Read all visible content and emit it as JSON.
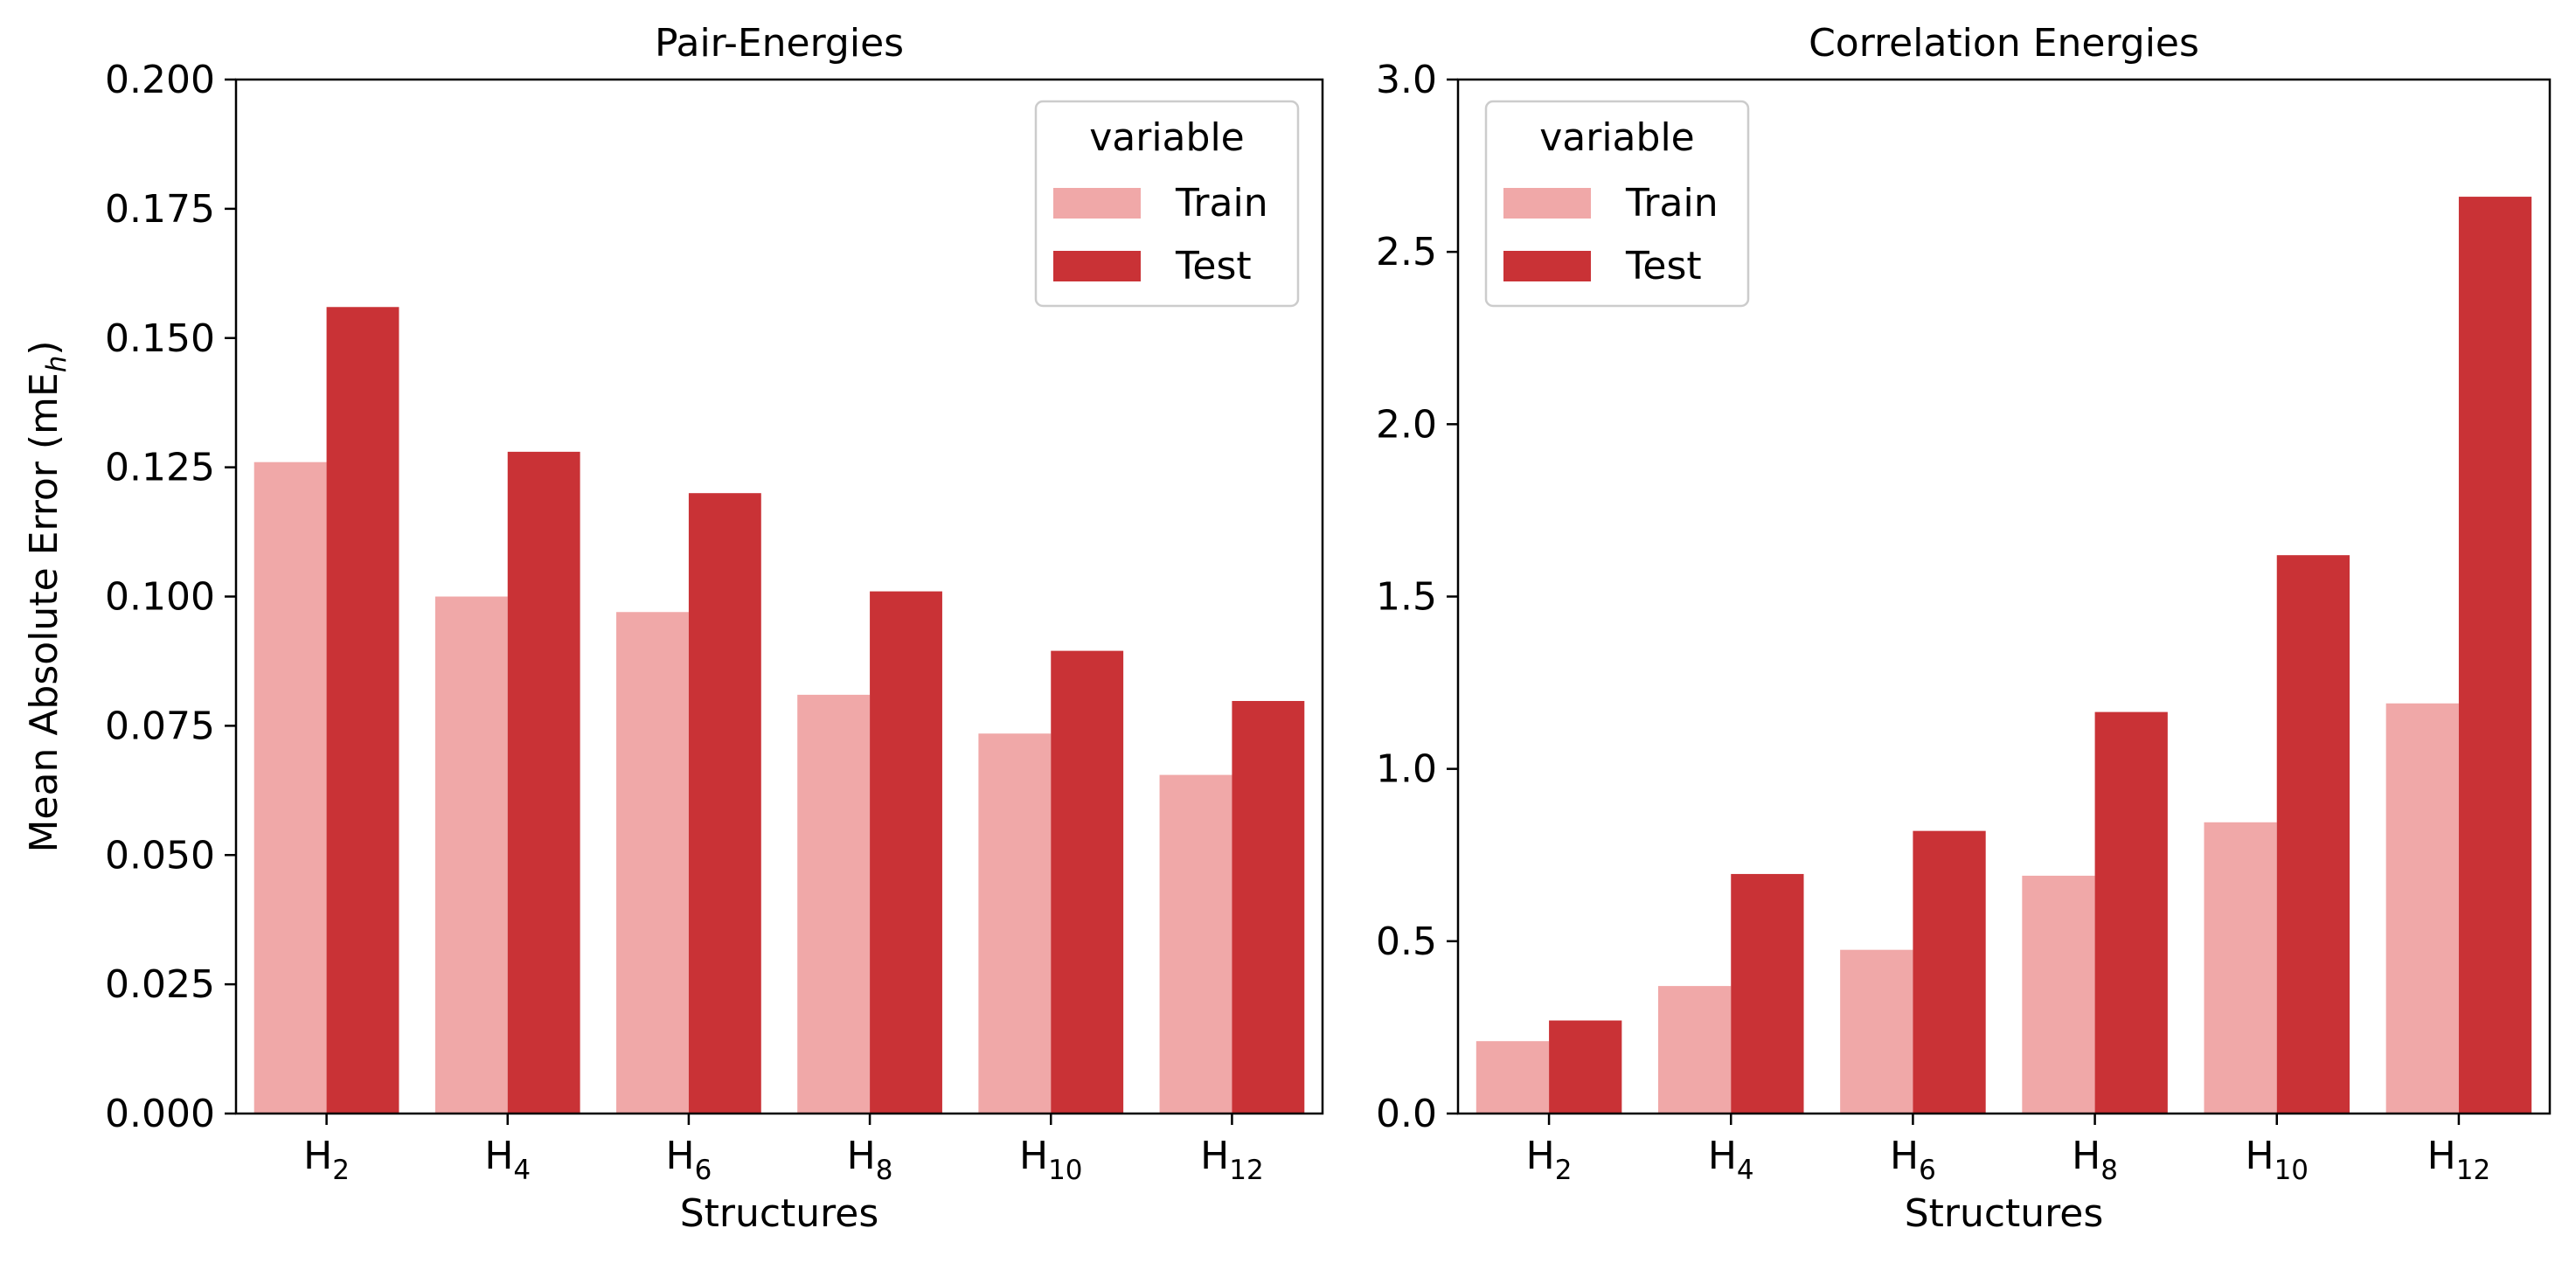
{
  "chart_data": [
    {
      "type": "bar",
      "title": "Pair-Energies",
      "xlabel": "Structures",
      "ylabel": "Mean Absolute Error (mE",
      "ylabel_sub": "h",
      "ylabel_close": ")",
      "categories": [
        {
          "base": "H",
          "sub": "2"
        },
        {
          "base": "H",
          "sub": "4"
        },
        {
          "base": "H",
          "sub": "6"
        },
        {
          "base": "H",
          "sub": "8"
        },
        {
          "base": "H",
          "sub": "10"
        },
        {
          "base": "H",
          "sub": "12"
        }
      ],
      "ylim": [
        0,
        0.2
      ],
      "yticks": [
        "0.000",
        "0.025",
        "0.050",
        "0.075",
        "0.100",
        "0.125",
        "0.150",
        "0.175",
        "0.200"
      ],
      "series": [
        {
          "name": "Train",
          "color": "#f0a8a8",
          "values": [
            0.126,
            0.1,
            0.097,
            0.081,
            0.0735,
            0.0655
          ]
        },
        {
          "name": "Test",
          "color": "#c93236",
          "values": [
            0.156,
            0.128,
            0.12,
            0.101,
            0.0895,
            0.0798
          ]
        }
      ],
      "legend": {
        "title": "variable",
        "position": "top-right"
      },
      "grid": false
    },
    {
      "type": "bar",
      "title": "Correlation Energies",
      "xlabel": "Structures",
      "ylabel": "",
      "categories": [
        {
          "base": "H",
          "sub": "2"
        },
        {
          "base": "H",
          "sub": "4"
        },
        {
          "base": "H",
          "sub": "6"
        },
        {
          "base": "H",
          "sub": "8"
        },
        {
          "base": "H",
          "sub": "10"
        },
        {
          "base": "H",
          "sub": "12"
        }
      ],
      "ylim": [
        0,
        3.0
      ],
      "yticks": [
        "0.0",
        "0.5",
        "1.0",
        "1.5",
        "2.0",
        "2.5",
        "3.0"
      ],
      "series": [
        {
          "name": "Train",
          "color": "#f0a8a8",
          "values": [
            0.21,
            0.37,
            0.475,
            0.69,
            0.845,
            1.19
          ]
        },
        {
          "name": "Test",
          "color": "#c93236",
          "values": [
            0.27,
            0.695,
            0.82,
            1.165,
            1.62,
            2.66
          ]
        }
      ],
      "legend": {
        "title": "variable",
        "position": "top-left"
      },
      "grid": false
    }
  ]
}
